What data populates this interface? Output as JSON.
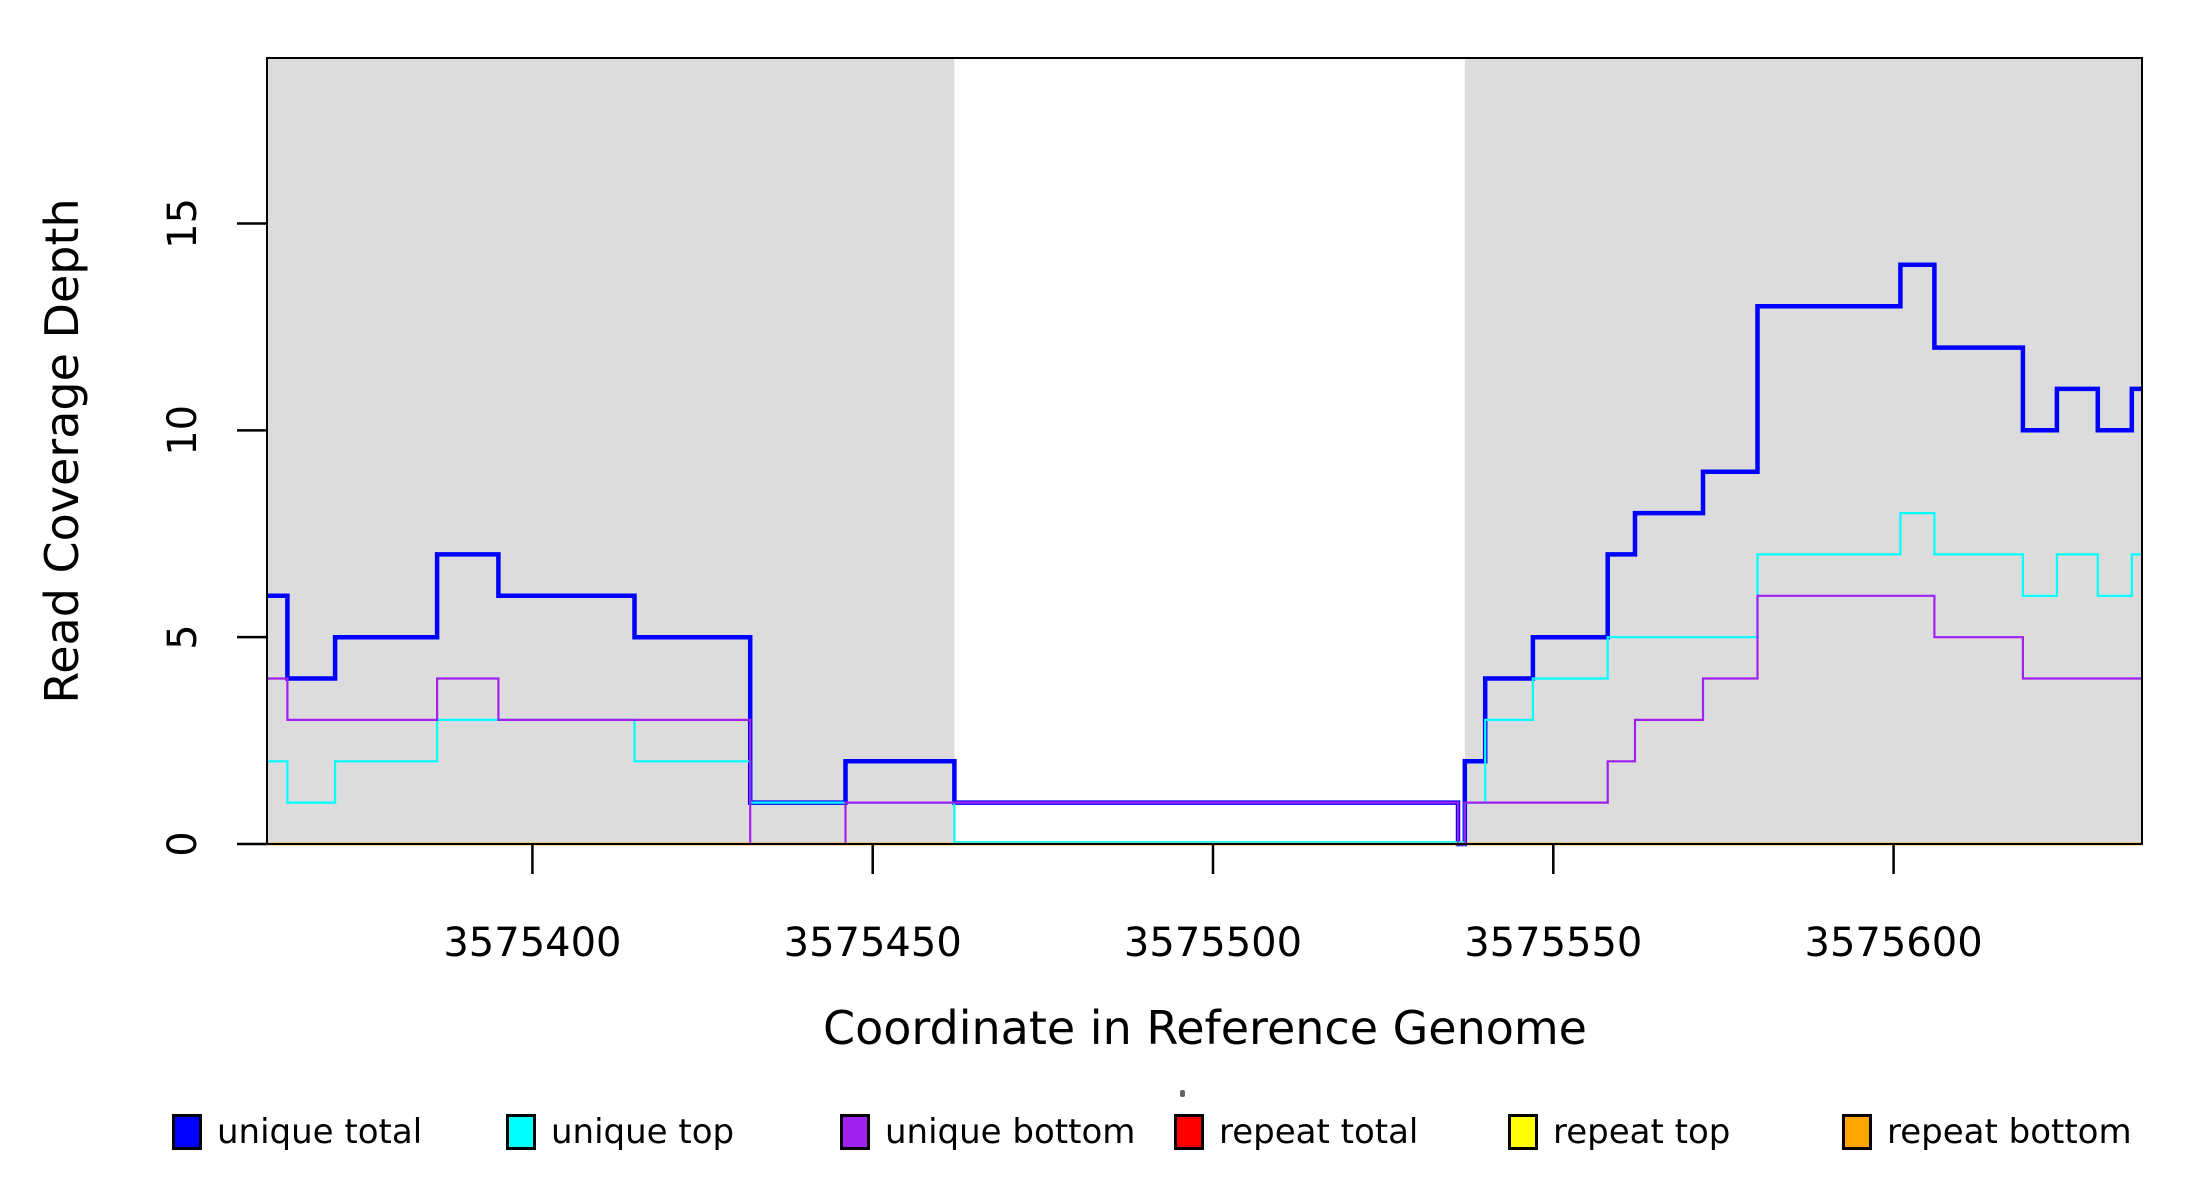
{
  "figure": {
    "background": "#ffffff",
    "plot_fill": "#ffffff"
  },
  "axes": {
    "x_label": "Coordinate in Reference Genome",
    "y_label": "Read Coverage Depth",
    "x_ticks": [
      {
        "value": 3575400,
        "label": "3575400"
      },
      {
        "value": 3575450,
        "label": "3575450"
      },
      {
        "value": 3575500,
        "label": "3575500"
      },
      {
        "value": 3575550,
        "label": "3575550"
      },
      {
        "value": 3575600,
        "label": "3575600"
      }
    ],
    "y_ticks": [
      {
        "value": 0,
        "label": "0"
      },
      {
        "value": 5,
        "label": "5"
      },
      {
        "value": 10,
        "label": "10"
      },
      {
        "value": 15,
        "label": "15"
      }
    ]
  },
  "chart_data": {
    "type": "line",
    "subtype": "step",
    "title": "",
    "xlabel": "Coordinate in Reference Genome",
    "ylabel": "Read Coverage Depth",
    "xlim": [
      3575361,
      3575636.5
    ],
    "ylim": [
      0,
      19
    ],
    "grid": false,
    "legend_position": "bottom",
    "box_color": "#000000",
    "shade_color": "#DCDCDC",
    "shaded_regions": [
      {
        "x0": 3575361,
        "x1": 3575462
      },
      {
        "x0": 3575537,
        "x1": 3575636.5
      }
    ],
    "series": [
      {
        "name": "unique total",
        "color": "#0000FF",
        "line_width": 4.5,
        "steps": [
          [
            3575361,
            6
          ],
          [
            3575364,
            4
          ],
          [
            3575371,
            5
          ],
          [
            3575386,
            7
          ],
          [
            3575395,
            6
          ],
          [
            3575415,
            5
          ],
          [
            3575432,
            1
          ],
          [
            3575446,
            2
          ],
          [
            3575462,
            1
          ],
          [
            3575536,
            0
          ],
          [
            3575537,
            2
          ],
          [
            3575540,
            4
          ],
          [
            3575547,
            5
          ],
          [
            3575558,
            7
          ],
          [
            3575562,
            8
          ],
          [
            3575572,
            9
          ],
          [
            3575580,
            13
          ],
          [
            3575601,
            14
          ],
          [
            3575606,
            12
          ],
          [
            3575619,
            10
          ],
          [
            3575624,
            11
          ],
          [
            3575630,
            10
          ],
          [
            3575635,
            11
          ],
          [
            3575636.5,
            null
          ]
        ]
      },
      {
        "name": "unique top",
        "color": "#00FFFF",
        "line_width": 2.2,
        "steps": [
          [
            3575361,
            2
          ],
          [
            3575364,
            1
          ],
          [
            3575371,
            2
          ],
          [
            3575386,
            3
          ],
          [
            3575415,
            2
          ],
          [
            3575432,
            1
          ],
          [
            3575462,
            0
          ],
          [
            3575537,
            1
          ],
          [
            3575540,
            3
          ],
          [
            3575547,
            4
          ],
          [
            3575558,
            5
          ],
          [
            3575580,
            7
          ],
          [
            3575601,
            8
          ],
          [
            3575606,
            7
          ],
          [
            3575619,
            6
          ],
          [
            3575624,
            7
          ],
          [
            3575630,
            6
          ],
          [
            3575635,
            7
          ],
          [
            3575636.5,
            null
          ]
        ]
      },
      {
        "name": "unique bottom",
        "color": "#A020F0",
        "line_width": 2.2,
        "steps": [
          [
            3575361,
            4
          ],
          [
            3575364,
            3
          ],
          [
            3575386,
            4
          ],
          [
            3575395,
            3
          ],
          [
            3575432,
            0
          ],
          [
            3575446,
            1
          ],
          [
            3575536,
            0
          ],
          [
            3575537,
            1
          ],
          [
            3575558,
            2
          ],
          [
            3575562,
            3
          ],
          [
            3575572,
            4
          ],
          [
            3575580,
            6
          ],
          [
            3575606,
            5
          ],
          [
            3575619,
            4
          ],
          [
            3575636.5,
            null
          ]
        ]
      },
      {
        "name": "repeat total",
        "color": "#FF0000",
        "line_width": 2.2,
        "steps": [
          [
            3575361,
            0
          ],
          [
            3575636.5,
            null
          ]
        ]
      },
      {
        "name": "repeat top",
        "color": "#FFFF00",
        "line_width": 2.2,
        "steps": [
          [
            3575361,
            0
          ],
          [
            3575636.5,
            null
          ]
        ]
      },
      {
        "name": "repeat bottom",
        "color": "#FFA500",
        "line_width": 2.6,
        "steps": [
          [
            3575361,
            0
          ],
          [
            3575636.5,
            null
          ]
        ]
      }
    ],
    "legend": {
      "entries": [
        {
          "label": "unique total",
          "color": "#0000FF"
        },
        {
          "label": "unique top",
          "color": "#00FFFF"
        },
        {
          "label": "unique bottom",
          "color": "#A020F0"
        },
        {
          "label": "repeat total",
          "color": "#FF0000"
        },
        {
          "label": "repeat top",
          "color": "#FFFF00"
        },
        {
          "label": "repeat bottom",
          "color": "#FFA500"
        }
      ]
    }
  }
}
